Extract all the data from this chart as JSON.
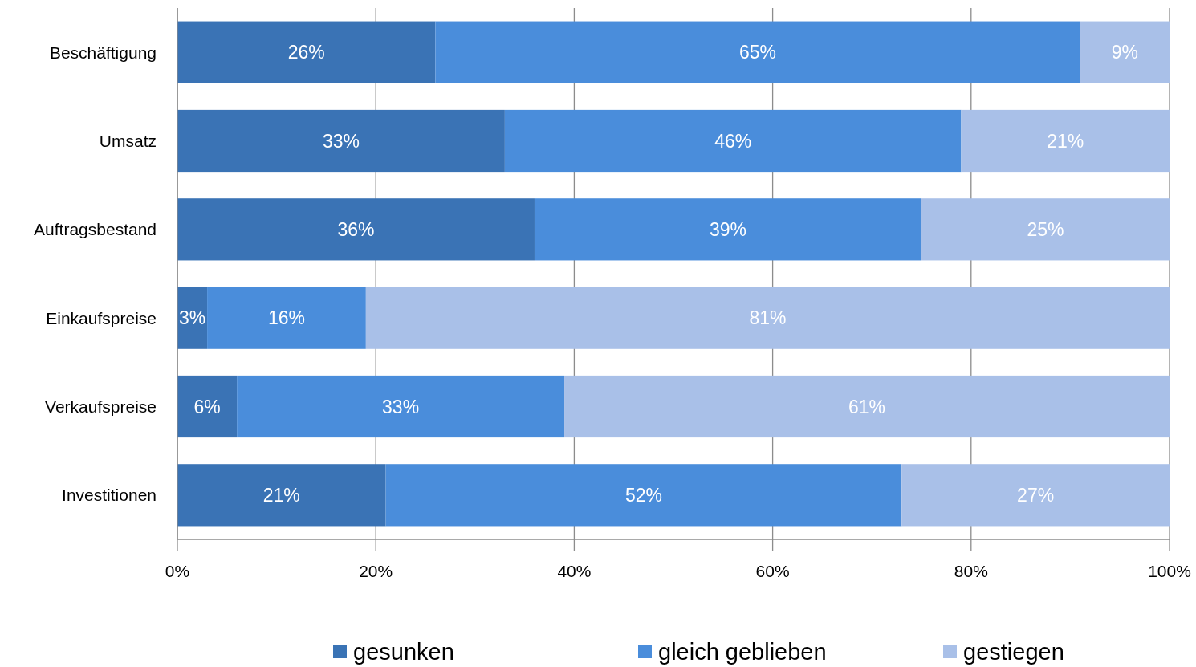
{
  "chart_data": {
    "type": "bar",
    "orientation": "horizontal",
    "stacked": true,
    "categories": [
      "Beschäftigung",
      "Umsatz",
      "Auftragsbestand",
      "Einkaufspreise",
      "Verkaufspreise",
      "Investitionen"
    ],
    "series": [
      {
        "name": "gesunken",
        "color": "#3a73b5",
        "values": [
          26,
          33,
          36,
          3,
          6,
          21
        ],
        "value_labels": [
          "26%",
          "33%",
          "36%",
          "3%",
          "6%",
          "21%"
        ]
      },
      {
        "name": "gleich geblieben",
        "color": "#4a8ddb",
        "values": [
          65,
          46,
          39,
          16,
          33,
          52
        ],
        "value_labels": [
          "65%",
          "46%",
          "39%",
          "16%",
          "33%",
          "52%"
        ]
      },
      {
        "name": "gestiegen",
        "color": "#a9c0e8",
        "values": [
          9,
          21,
          25,
          81,
          61,
          27
        ],
        "value_labels": [
          "9%",
          "21%",
          "25%",
          "81%",
          "61%",
          "27%"
        ]
      }
    ],
    "xlim": [
      0,
      100
    ],
    "xticks": [
      {
        "value": 0,
        "label": "0%"
      },
      {
        "value": 20,
        "label": "20%"
      },
      {
        "value": 40,
        "label": "40%"
      },
      {
        "value": 60,
        "label": "60%"
      },
      {
        "value": 80,
        "label": "80%"
      },
      {
        "value": 100,
        "label": "100%"
      }
    ],
    "grid": "x",
    "legend": "bottom"
  }
}
